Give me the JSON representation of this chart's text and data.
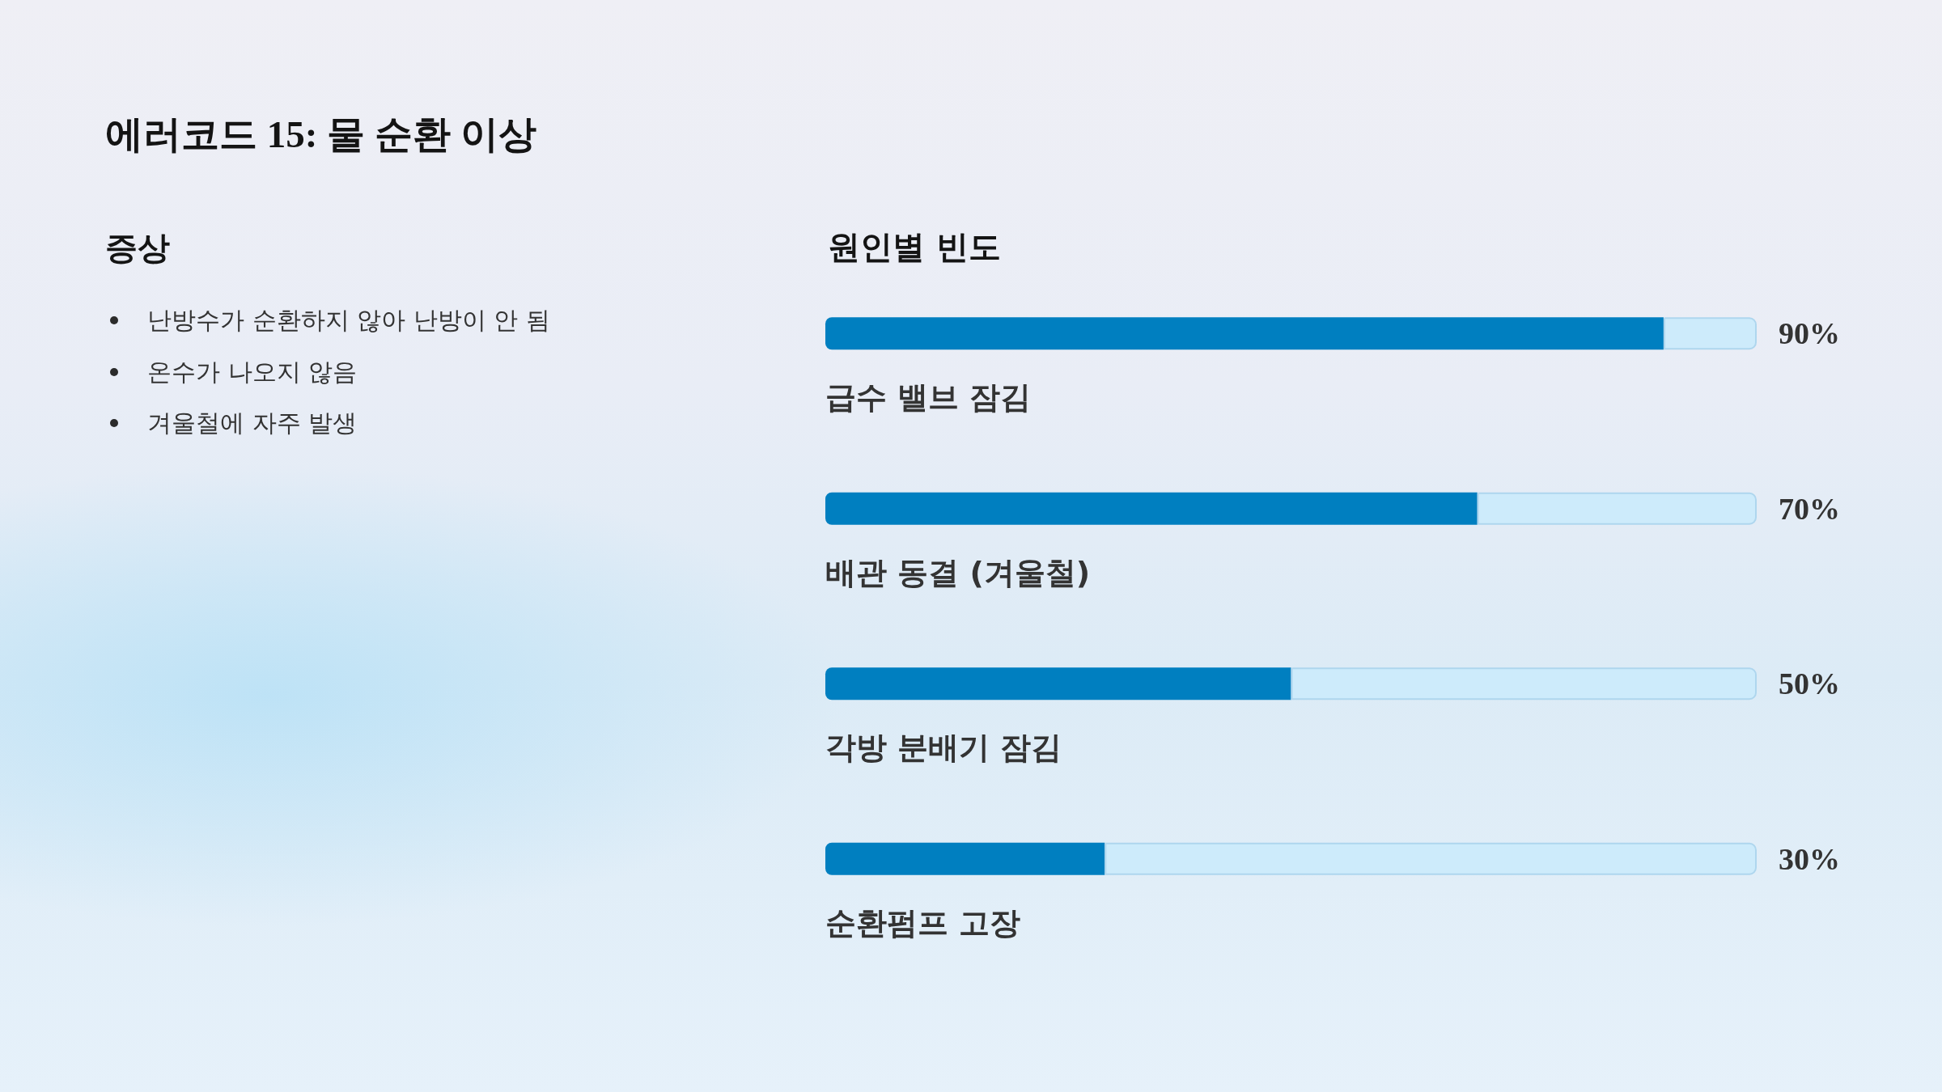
{
  "chart_data": [
    {
      "type": "other",
      "title": "에러코드 15: 물 순환 이상",
      "subtitle": "증상",
      "annotations": [
        "난방수가 순환하지 않아 난방이 안 됨",
        "온수가 나오지 않음",
        "겨울철에 자주 발생"
      ]
    },
    {
      "type": "bar",
      "orientation": "horizontal",
      "stacked": true,
      "title": "원인별 빈도",
      "categories": [
        "급수 밸브 잠김",
        "배관 동결 (겨울철)",
        "각방 분배기 잠김",
        "순환펌프 고장"
      ],
      "series": [
        {
          "color": "#007fc0",
          "values": [
            90,
            70,
            50,
            30
          ],
          "value_labels": [
            "90%",
            "70%",
            "50%",
            "30%"
          ]
        },
        {
          "color": "#cdebfb",
          "values": [
            10,
            30,
            50,
            70
          ]
        }
      ],
      "xlim": [
        0,
        100
      ],
      "tick_labels": "y",
      "grid": false
    }
  ]
}
